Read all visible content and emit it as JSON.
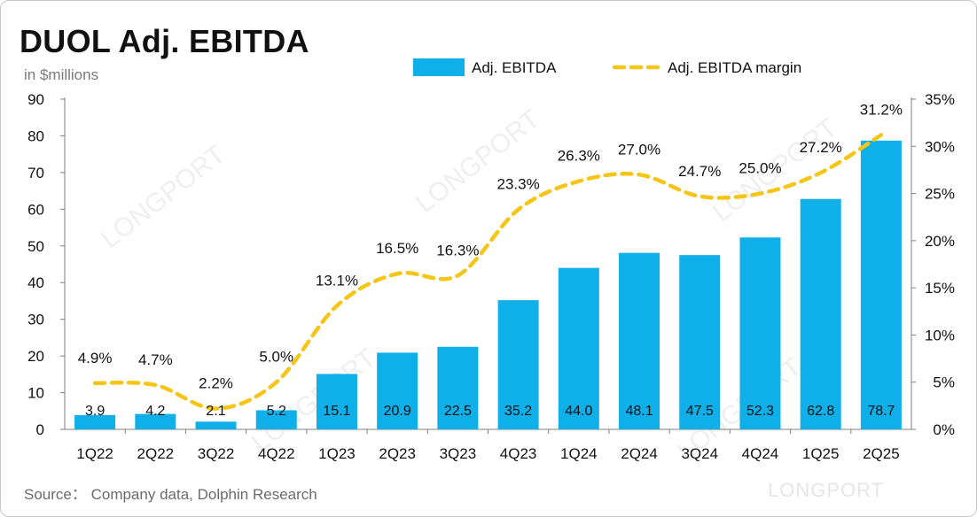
{
  "title": "DUOL Adj. EBITDA",
  "subtitle": "in $millions",
  "source": "Source：  Company data, Dolphin Research",
  "watermark": "LONGPORT",
  "colors": {
    "bar": "#0fb0ea",
    "line": "#f5c518",
    "axis": "#7f7f7f",
    "text": "#111111"
  },
  "chart_data": {
    "type": "bar",
    "categories": [
      "1Q22",
      "2Q22",
      "3Q22",
      "4Q22",
      "1Q23",
      "2Q23",
      "3Q23",
      "4Q23",
      "1Q24",
      "2Q24",
      "3Q24",
      "4Q24",
      "1Q25",
      "2Q25"
    ],
    "series": [
      {
        "name": "Adj. EBITDA",
        "type": "bar",
        "axis": "left",
        "values": [
          3.9,
          4.2,
          2.1,
          5.2,
          15.1,
          20.9,
          22.5,
          35.2,
          44.0,
          48.1,
          47.5,
          52.3,
          62.8,
          78.7
        ],
        "labels": [
          "3.9",
          "4.2",
          "2.1",
          "5.2",
          "15.1",
          "20.9",
          "22.5",
          "35.2",
          "44.0",
          "48.1",
          "47.5",
          "52.3",
          "62.8",
          "78.7"
        ]
      },
      {
        "name": "Adj. EBITDA margin",
        "type": "line",
        "style": "dashed",
        "axis": "right",
        "values": [
          4.9,
          4.7,
          2.2,
          5.0,
          13.1,
          16.5,
          16.3,
          23.3,
          26.3,
          27.0,
          24.7,
          25.0,
          27.2,
          31.2
        ],
        "labels": [
          "4.9%",
          "4.7%",
          "2.2%",
          "5.0%",
          "13.1%",
          "16.5%",
          "16.3%",
          "23.3%",
          "26.3%",
          "27.0%",
          "24.7%",
          "25.0%",
          "27.2%",
          "31.2%"
        ]
      }
    ],
    "y_left": {
      "min": 0,
      "max": 90,
      "ticks": [
        "0",
        "10",
        "20",
        "30",
        "40",
        "50",
        "60",
        "70",
        "80",
        "90"
      ]
    },
    "y_right": {
      "min": 0,
      "max": 35,
      "ticks": [
        "0%",
        "5%",
        "10%",
        "15%",
        "20%",
        "25%",
        "30%",
        "35%"
      ]
    },
    "legend_position": "top-right",
    "grid": false
  }
}
